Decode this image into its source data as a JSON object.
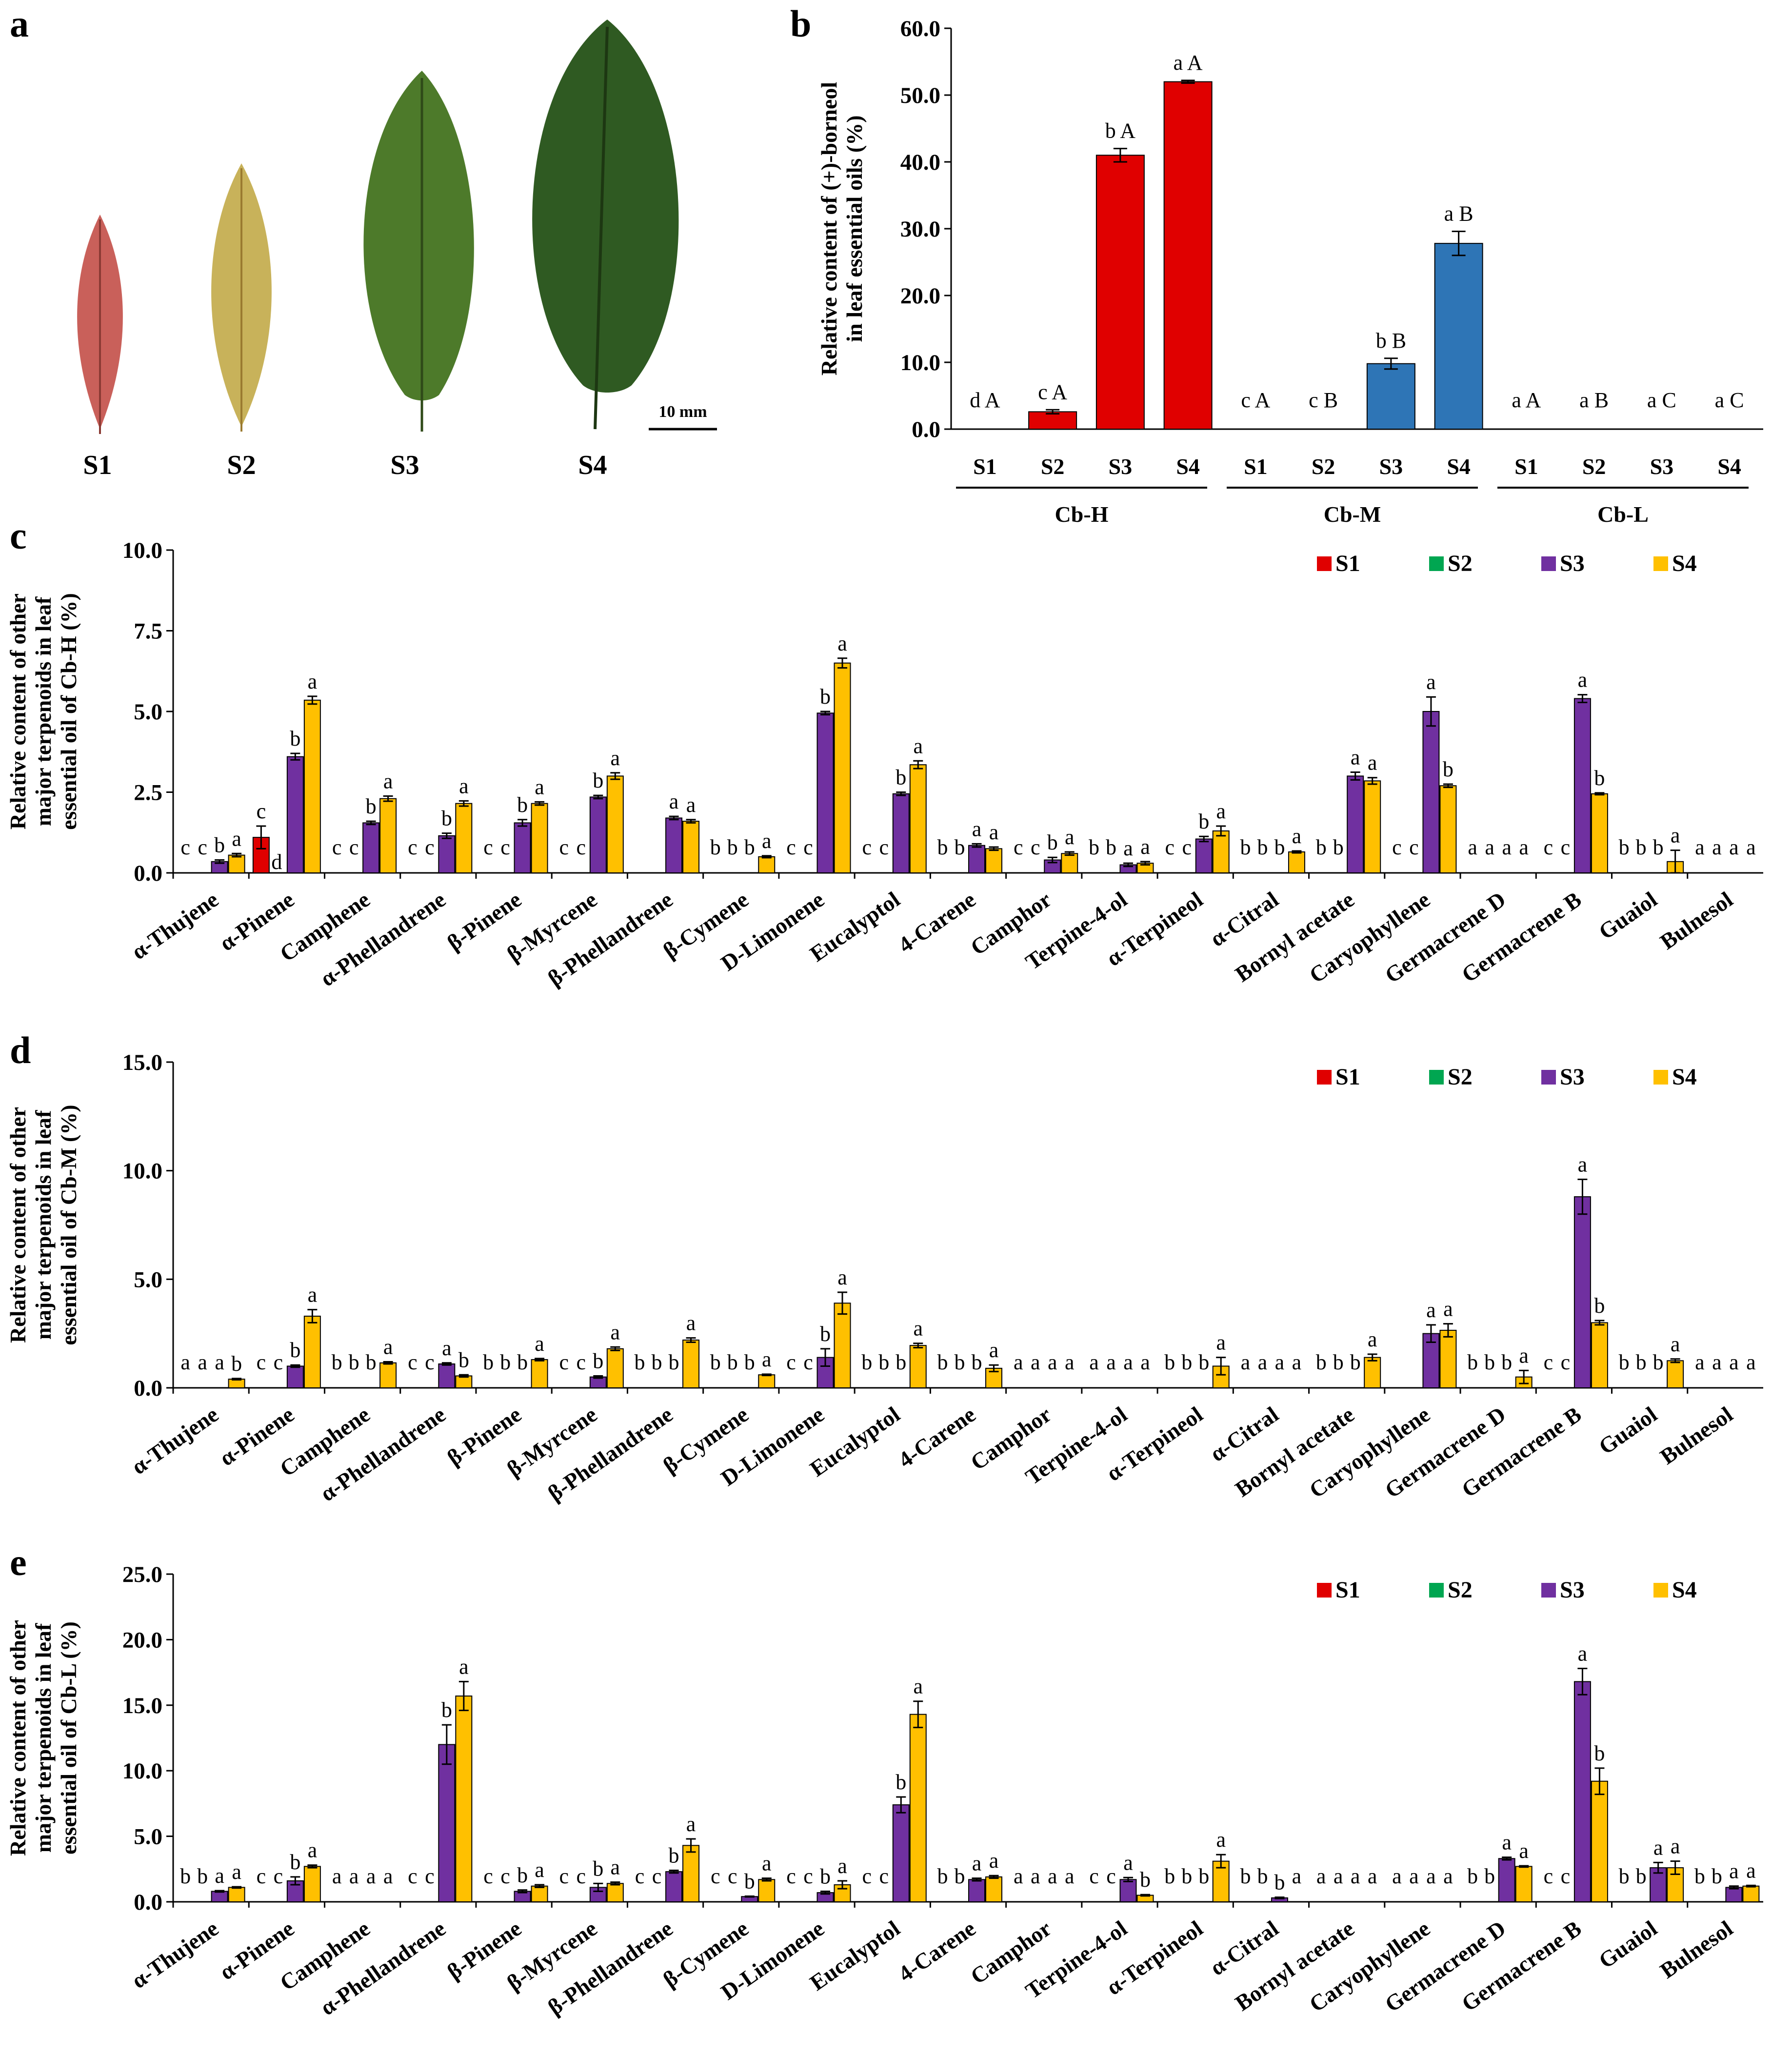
{
  "panels": {
    "a": "a",
    "b": "b",
    "c": "c",
    "d": "d",
    "e": "e"
  },
  "leaves": {
    "labels": [
      "S1",
      "S2",
      "S3",
      "S4"
    ],
    "scale_label": "10 mm",
    "colors": [
      "#c9605a",
      "#c8b25a",
      "#4d7a2a",
      "#2f5a22"
    ]
  },
  "legend": {
    "items": [
      {
        "label": "S1",
        "color": "#e00000"
      },
      {
        "label": "S2",
        "color": "#00a651"
      },
      {
        "label": "S3",
        "color": "#7030a0"
      },
      {
        "label": "S4",
        "color": "#ffc000"
      }
    ]
  },
  "chart_data": [
    {
      "id": "b",
      "type": "bar",
      "ylabel_lines": [
        "Relative content of (+)-borneol",
        "in leaf essential oils (%)"
      ],
      "ylim": [
        0,
        60
      ],
      "yticks": [
        "0.0",
        "10.0",
        "20.0",
        "30.0",
        "40.0",
        "50.0",
        "60.0"
      ],
      "groups": [
        {
          "name": "Cb-H",
          "color": "#e00000",
          "stages": [
            "S1",
            "S2",
            "S3",
            "S4"
          ],
          "values": [
            0,
            2.6,
            41.0,
            52.0
          ],
          "errors": [
            0,
            0.3,
            1.0,
            0.2
          ],
          "letters": [
            "d A",
            "c A",
            "b A",
            "a A"
          ]
        },
        {
          "name": "Cb-M",
          "color": "#2e75b6",
          "stages": [
            "S1",
            "S2",
            "S3",
            "S4"
          ],
          "values": [
            0,
            0,
            9.8,
            27.8
          ],
          "errors": [
            0,
            0,
            0.8,
            1.8
          ],
          "letters": [
            "c A",
            "c B",
            "b B",
            "a B"
          ]
        },
        {
          "name": "Cb-L",
          "color": "#2e75b6",
          "stages": [
            "S1",
            "S2",
            "S3",
            "S4"
          ],
          "values": [
            0,
            0,
            0,
            0
          ],
          "errors": [
            0,
            0,
            0,
            0
          ],
          "letters": [
            "a A",
            "a B",
            "a C",
            "a C"
          ]
        }
      ]
    },
    {
      "id": "c",
      "type": "bar",
      "ylabel_lines": [
        "Relative content of other",
        "major terpenoids in leaf",
        "essential oil of Cb-H (%)"
      ],
      "ylim": [
        0,
        10
      ],
      "yticks": [
        "0.0",
        "2.5",
        "5.0",
        "7.5",
        "10.0"
      ],
      "categories": [
        "α-Thujene",
        "α-Pinene",
        "Camphene",
        "α-Phellandrene",
        "β-Pinene",
        "β-Myrcene",
        "β-Phellandrene",
        "β-Cymene",
        "D-Limonene",
        "Eucalyptol",
        "4-Carene",
        "Camphor",
        "Terpine-4-ol",
        "α-Terpineol",
        "α-Citral",
        "Bornyl acetate",
        "Caryophyllene",
        "Germacrene D",
        "Germacrene B",
        "Guaiol",
        "Bulnesol"
      ],
      "series": [
        {
          "name": "S1",
          "values": [
            0,
            1.1,
            0,
            0,
            0,
            0,
            0,
            0,
            0,
            0,
            0,
            0,
            0,
            0,
            0,
            0,
            0,
            0,
            0,
            0,
            0
          ],
          "errors": [
            0,
            0.35,
            0,
            0,
            0,
            0,
            0,
            0,
            0,
            0,
            0,
            0,
            0,
            0,
            0,
            0,
            0,
            0,
            0,
            0,
            0
          ]
        },
        {
          "name": "S2",
          "values": [
            0,
            0,
            0,
            0,
            0,
            0,
            0,
            0,
            0,
            0,
            0,
            0,
            0,
            0,
            0,
            0,
            0,
            0,
            0,
            0,
            0
          ],
          "errors": [
            0,
            0,
            0,
            0,
            0,
            0,
            0,
            0,
            0,
            0,
            0,
            0,
            0,
            0,
            0,
            0,
            0,
            0,
            0,
            0,
            0
          ]
        },
        {
          "name": "S3",
          "values": [
            0.35,
            3.6,
            1.55,
            1.15,
            1.55,
            2.35,
            1.7,
            0,
            4.95,
            2.45,
            0.85,
            0.4,
            0.25,
            1.05,
            0,
            3.0,
            5.0,
            0,
            5.4,
            0,
            0
          ],
          "errors": [
            0.05,
            0.1,
            0.05,
            0.08,
            0.1,
            0.05,
            0.05,
            0,
            0.05,
            0.05,
            0.05,
            0.08,
            0.05,
            0.08,
            0,
            0.12,
            0.45,
            0,
            0.12,
            0,
            0
          ]
        },
        {
          "name": "S4",
          "values": [
            0.55,
            5.35,
            2.3,
            2.15,
            2.15,
            3.0,
            1.6,
            0.5,
            6.5,
            3.35,
            0.75,
            0.6,
            0.3,
            1.3,
            0.65,
            2.85,
            2.7,
            0,
            2.45,
            0.35,
            0
          ],
          "errors": [
            0.05,
            0.12,
            0.08,
            0.08,
            0.05,
            0.1,
            0.05,
            0.03,
            0.15,
            0.12,
            0.05,
            0.05,
            0.05,
            0.15,
            0.03,
            0.1,
            0.05,
            0,
            0.03,
            0.35,
            0
          ]
        }
      ],
      "letters": [
        [
          "c",
          "c",
          "b",
          "a"
        ],
        [
          "c",
          "",
          "b",
          "a"
        ],
        [
          "c",
          "c",
          "b",
          "a"
        ],
        [
          "c",
          "c",
          "b",
          "a"
        ],
        [
          "c",
          "c",
          "b",
          "a"
        ],
        [
          "c",
          "c",
          "b",
          "a"
        ],
        [
          "",
          "",
          "a",
          "a"
        ],
        [
          "b",
          "b",
          "b",
          "a"
        ],
        [
          "c",
          "c",
          "b",
          "a"
        ],
        [
          "c",
          "c",
          "b",
          "a"
        ],
        [
          "b",
          "b",
          "a",
          "a"
        ],
        [
          "c",
          "c",
          "b",
          "a"
        ],
        [
          "b",
          "b",
          "a",
          "a"
        ],
        [
          "c",
          "c",
          "b",
          "a"
        ],
        [
          "b",
          "b",
          "b",
          "a"
        ],
        [
          "b",
          "b",
          "a",
          "a"
        ],
        [
          "c",
          "c",
          "a",
          "b"
        ],
        [
          "a",
          "a",
          "a",
          "a"
        ],
        [
          "c",
          "c",
          "a",
          "b"
        ],
        [
          "b",
          "b",
          "b",
          "a"
        ],
        [
          "a",
          "a",
          "a",
          "a"
        ]
      ],
      "extra_letters": {
        "category": "α-Pinene",
        "above_s1": "c",
        "right_of_s1": "d"
      }
    },
    {
      "id": "d",
      "type": "bar",
      "ylabel_lines": [
        "Relative content of other",
        "major terpenoids in leaf",
        "essential oil of Cb-M (%)"
      ],
      "ylim": [
        0,
        15
      ],
      "yticks": [
        "0.0",
        "5.0",
        "10.0",
        "15.0"
      ],
      "categories": [
        "α-Thujene",
        "α-Pinene",
        "Camphene",
        "α-Phellandrene",
        "β-Pinene",
        "β-Myrcene",
        "β-Phellandrene",
        "β-Cymene",
        "D-Limonene",
        "Eucalyptol",
        "4-Carene",
        "Camphor",
        "Terpine-4-ol",
        "α-Terpineol",
        "α-Citral",
        "Bornyl acetate",
        "Caryophyllene",
        "Germacrene D",
        "Germacrene B",
        "Guaiol",
        "Bulnesol"
      ],
      "series": [
        {
          "name": "S1",
          "values": [
            0,
            0,
            0,
            0,
            0,
            0,
            0,
            0,
            0,
            0,
            0,
            0,
            0,
            0,
            0,
            0,
            0,
            0,
            0,
            0,
            0
          ],
          "errors": [
            0,
            0,
            0,
            0,
            0,
            0,
            0,
            0,
            0,
            0,
            0,
            0,
            0,
            0,
            0,
            0,
            0,
            0,
            0,
            0,
            0
          ]
        },
        {
          "name": "S2",
          "values": [
            0,
            0,
            0,
            0,
            0,
            0,
            0,
            0,
            0,
            0,
            0,
            0,
            0,
            0,
            0,
            0,
            0,
            0,
            0,
            0,
            0
          ],
          "errors": [
            0,
            0,
            0,
            0,
            0,
            0,
            0,
            0,
            0,
            0,
            0,
            0,
            0,
            0,
            0,
            0,
            0,
            0,
            0,
            0,
            0
          ]
        },
        {
          "name": "S3",
          "values": [
            0,
            1.0,
            0,
            1.1,
            0,
            0.5,
            0,
            0,
            1.4,
            0,
            0,
            0,
            0,
            0,
            0,
            0,
            2.5,
            0,
            8.8,
            0,
            0
          ],
          "errors": [
            0,
            0.05,
            0,
            0.05,
            0,
            0.05,
            0,
            0,
            0.4,
            0,
            0,
            0,
            0,
            0,
            0,
            0,
            0.4,
            0,
            0.8,
            0,
            0
          ]
        },
        {
          "name": "S4",
          "values": [
            0.4,
            3.3,
            1.15,
            0.55,
            1.3,
            1.8,
            2.2,
            0.6,
            3.9,
            1.95,
            0.9,
            0,
            0,
            1.0,
            0,
            1.4,
            2.65,
            0.5,
            3.0,
            1.25,
            0
          ],
          "errors": [
            0.03,
            0.3,
            0.05,
            0.05,
            0.05,
            0.08,
            0.1,
            0.03,
            0.5,
            0.1,
            0.15,
            0,
            0,
            0.4,
            0,
            0.15,
            0.3,
            0.3,
            0.1,
            0.08,
            0
          ]
        }
      ],
      "letters": [
        [
          "a",
          "a",
          "a",
          "b"
        ],
        [
          "c",
          "c",
          "b",
          "a"
        ],
        [
          "b",
          "b",
          "b",
          "a"
        ],
        [
          "c",
          "c",
          "a",
          "b"
        ],
        [
          "b",
          "b",
          "b",
          "a"
        ],
        [
          "c",
          "c",
          "b",
          "a"
        ],
        [
          "b",
          "b",
          "b",
          "a"
        ],
        [
          "b",
          "b",
          "b",
          "a"
        ],
        [
          "c",
          "c",
          "b",
          "a"
        ],
        [
          "b",
          "b",
          "b",
          "a"
        ],
        [
          "b",
          "b",
          "b",
          "a"
        ],
        [
          "a",
          "a",
          "a",
          "a"
        ],
        [
          "a",
          "a",
          "a",
          "a"
        ],
        [
          "b",
          "b",
          "b",
          "a"
        ],
        [
          "a",
          "a",
          "a",
          "a"
        ],
        [
          "b",
          "b",
          "b",
          "a"
        ],
        [
          "",
          "",
          "a",
          "a"
        ],
        [
          "b",
          "b",
          "b",
          "a"
        ],
        [
          "c",
          "c",
          "a",
          "b"
        ],
        [
          "b",
          "b",
          "b",
          "a"
        ],
        [
          "a",
          "a",
          "a",
          "a"
        ]
      ]
    },
    {
      "id": "e",
      "type": "bar",
      "ylabel_lines": [
        "Relative content of other",
        "major terpenoids in leaf",
        "essential oil of Cb-L (%)"
      ],
      "ylim": [
        0,
        25
      ],
      "yticks": [
        "0.0",
        "5.0",
        "10.0",
        "15.0",
        "20.0",
        "25.0"
      ],
      "categories": [
        "α-Thujene",
        "α-Pinene",
        "Camphene",
        "α-Phellandrene",
        "β-Pinene",
        "β-Myrcene",
        "β-Phellandrene",
        "β-Cymene",
        "D-Limonene",
        "Eucalyptol",
        "4-Carene",
        "Camphor",
        "Terpine-4-ol",
        "α-Terpineol",
        "α-Citral",
        "Bornyl acetate",
        "Caryophyllene",
        "Germacrene D",
        "Germacrene B",
        "Guaiol",
        "Bulnesol"
      ],
      "series": [
        {
          "name": "S1",
          "values": [
            0,
            0,
            0,
            0,
            0,
            0,
            0,
            0,
            0,
            0,
            0,
            0,
            0,
            0,
            0,
            0,
            0,
            0,
            0,
            0,
            0
          ],
          "errors": [
            0,
            0,
            0,
            0,
            0,
            0,
            0,
            0,
            0,
            0,
            0,
            0,
            0,
            0,
            0,
            0,
            0,
            0,
            0,
            0,
            0
          ]
        },
        {
          "name": "S2",
          "values": [
            0,
            0,
            0,
            0,
            0,
            0,
            0,
            0,
            0,
            0,
            0,
            0,
            0,
            0,
            0,
            0,
            0,
            0,
            0,
            0,
            0
          ],
          "errors": [
            0,
            0,
            0,
            0,
            0,
            0,
            0,
            0,
            0,
            0,
            0,
            0,
            0,
            0,
            0,
            0,
            0,
            0,
            0,
            0,
            0
          ]
        },
        {
          "name": "S3",
          "values": [
            0.8,
            1.6,
            0,
            12.0,
            0.8,
            1.1,
            2.3,
            0.4,
            0.7,
            7.4,
            1.7,
            0,
            1.7,
            0,
            0.3,
            0,
            0,
            3.3,
            16.8,
            2.6,
            1.1
          ],
          "errors": [
            0.05,
            0.3,
            0,
            1.5,
            0.1,
            0.3,
            0.1,
            0.03,
            0.1,
            0.6,
            0.1,
            0,
            0.15,
            0,
            0.05,
            0,
            0,
            0.1,
            1.0,
            0.4,
            0.1
          ]
        },
        {
          "name": "S4",
          "values": [
            1.1,
            2.7,
            0,
            15.7,
            1.2,
            1.4,
            4.3,
            1.7,
            1.3,
            14.3,
            1.9,
            0,
            0.5,
            3.1,
            0,
            0,
            0,
            2.7,
            9.2,
            2.6,
            1.2
          ],
          "errors": [
            0.05,
            0.1,
            0,
            1.1,
            0.1,
            0.1,
            0.5,
            0.1,
            0.3,
            1.0,
            0.1,
            0,
            0.05,
            0.5,
            0,
            0,
            0,
            0.05,
            1.0,
            0.5,
            0.05
          ]
        }
      ],
      "letters": [
        [
          "b",
          "b",
          "a",
          "a"
        ],
        [
          "c",
          "c",
          "b",
          "a"
        ],
        [
          "a",
          "a",
          "a",
          "a"
        ],
        [
          "c",
          "c",
          "b",
          "a"
        ],
        [
          "c",
          "c",
          "b",
          "a"
        ],
        [
          "c",
          "c",
          "b",
          "a"
        ],
        [
          "c",
          "c",
          "b",
          "a"
        ],
        [
          "c",
          "c",
          "b",
          "a"
        ],
        [
          "c",
          "c",
          "b",
          "a"
        ],
        [
          "c",
          "c",
          "b",
          "a"
        ],
        [
          "b",
          "b",
          "a",
          "a"
        ],
        [
          "a",
          "a",
          "a",
          "a"
        ],
        [
          "c",
          "c",
          "a",
          "b"
        ],
        [
          "b",
          "b",
          "b",
          "a"
        ],
        [
          "b",
          "b",
          "b",
          "a"
        ],
        [
          "a",
          "a",
          "a",
          "a"
        ],
        [
          "a",
          "a",
          "a",
          "a"
        ],
        [
          "b",
          "b",
          "a",
          "a"
        ],
        [
          "c",
          "c",
          "a",
          "b"
        ],
        [
          "b",
          "b",
          "a",
          "a"
        ],
        [
          "b",
          "b",
          "a",
          "a"
        ]
      ]
    }
  ]
}
